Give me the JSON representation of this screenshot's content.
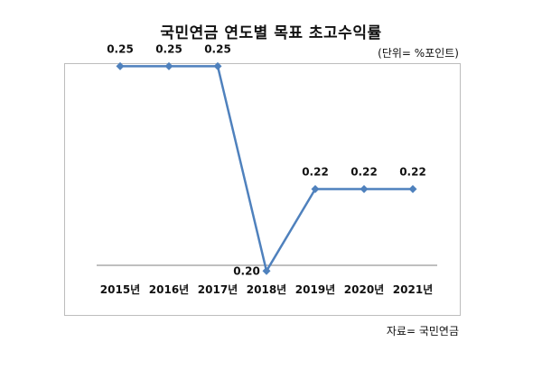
{
  "title": "국민연금 연도별 목표 초고수익률",
  "unit_note": "(단위= %포인트)",
  "source_note": "자료= 국민연금",
  "colors": {
    "line": "#4f81bd",
    "marker": "#4f81bd",
    "axis": "#7f7f7f",
    "border": "#bdbdbd"
  },
  "chart_data": {
    "type": "line",
    "title": "국민연금 연도별 목표 초고수익률",
    "categories": [
      "2015년",
      "2016년",
      "2017년",
      "2018년",
      "2019년",
      "2020년",
      "2021년"
    ],
    "series": [
      {
        "values": [
          0.25,
          0.25,
          0.25,
          0.2,
          0.22,
          0.22,
          0.22
        ]
      }
    ],
    "data_labels": [
      "0.25",
      "0.25",
      "0.25",
      "0.20",
      "0.22",
      "0.22",
      "0.22"
    ],
    "ylim": [
      0.195,
      0.26
    ],
    "grid": false,
    "legend": "none",
    "marker": "diamond"
  }
}
